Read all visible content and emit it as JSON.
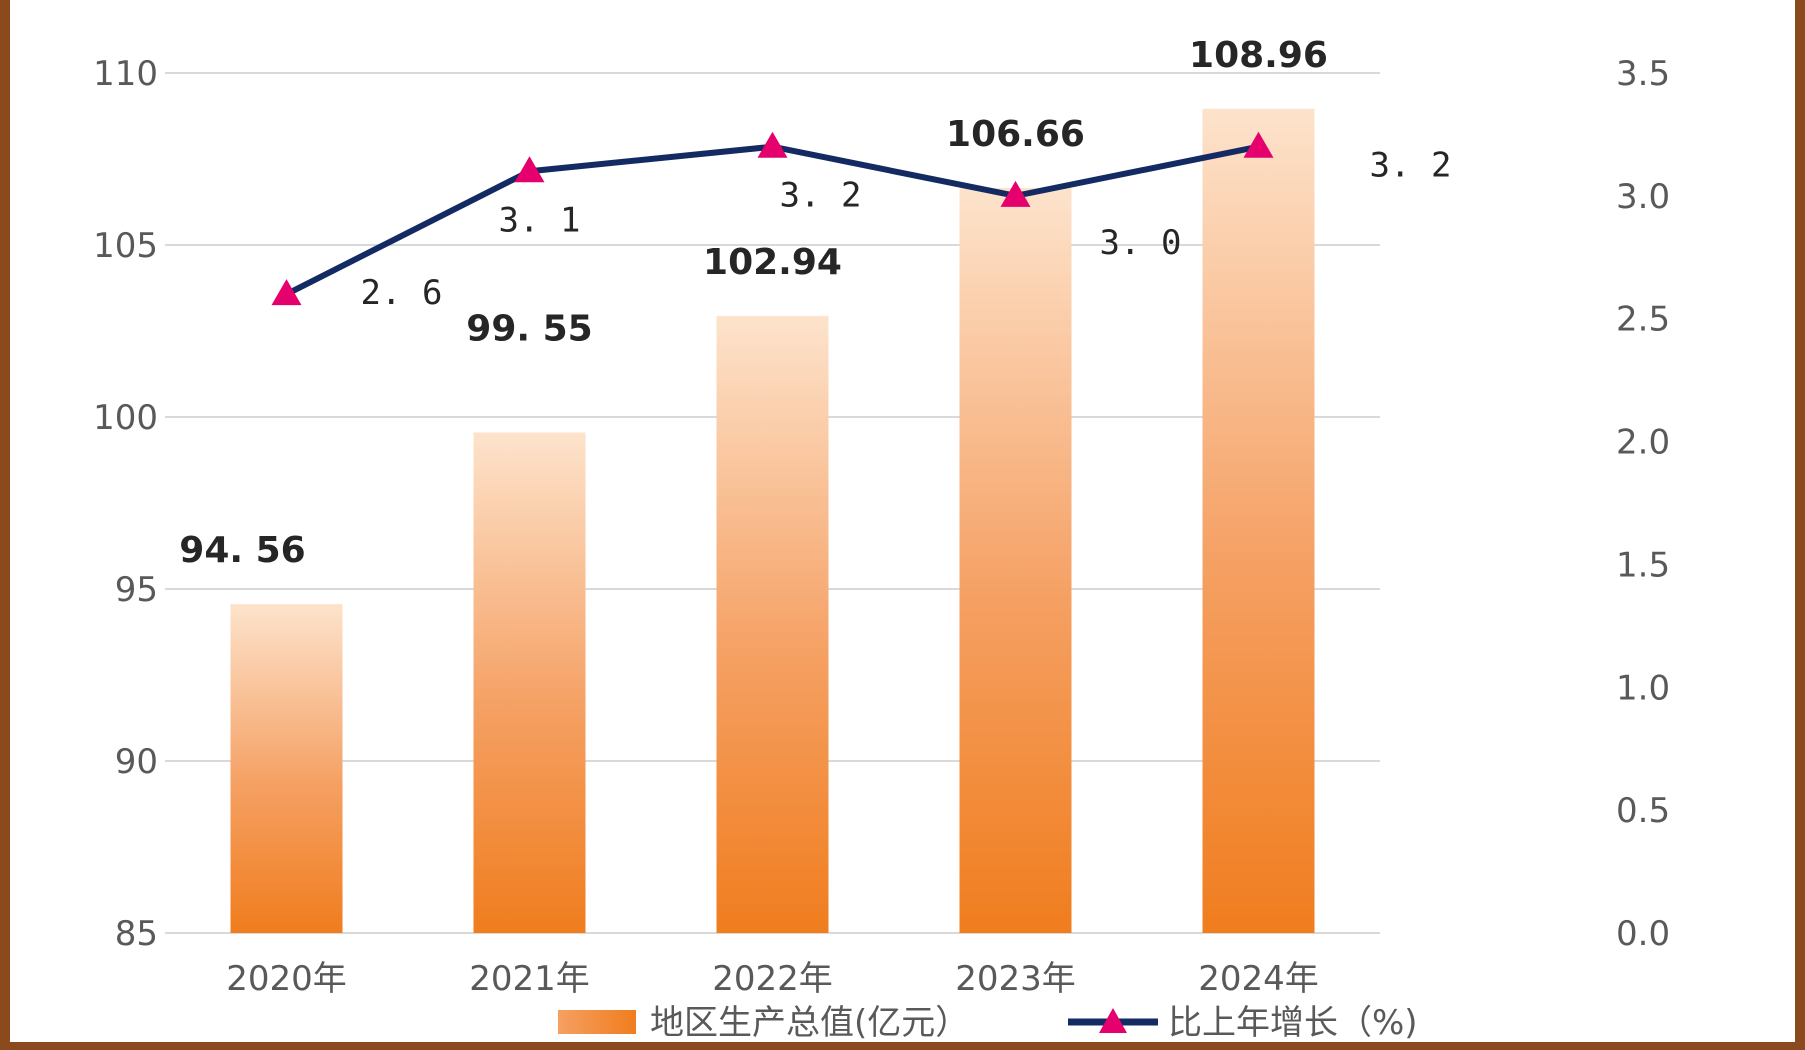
{
  "chart_data": {
    "type": "bar",
    "categories": [
      "2020年",
      "2021年",
      "2022年",
      "2023年",
      "2024年"
    ],
    "series": [
      {
        "name": "地区生产总值(亿元）",
        "type": "bar",
        "axis": "left",
        "values": [
          94.56,
          99.55,
          102.94,
          106.66,
          108.96
        ],
        "labels": [
          "94. 56",
          "99. 55",
          "102.94",
          "106.66",
          "108.96"
        ],
        "color_top": "#fde3cc",
        "color_bottom": "#f07d1e"
      },
      {
        "name": "比上年增长（%)",
        "type": "line",
        "axis": "right",
        "values": [
          2.6,
          3.1,
          3.2,
          3.0,
          3.2
        ],
        "labels": [
          "2. 6",
          "3. 1",
          "3. 2",
          "3. 0",
          "3. 2"
        ],
        "line_color": "#132a63",
        "marker_color": "#e6006e",
        "marker": "triangle"
      }
    ],
    "y_left": {
      "min": 85,
      "max": 110,
      "ticks": [
        "85",
        "90",
        "95",
        "100",
        "105",
        "110"
      ]
    },
    "y_right": {
      "min": 0,
      "max": 3.5,
      "ticks": [
        "0.0",
        "0.5",
        "1.0",
        "1.5",
        "2.0",
        "2.5",
        "3.0",
        "3.5"
      ]
    },
    "grid": true,
    "legend": "bottom"
  }
}
